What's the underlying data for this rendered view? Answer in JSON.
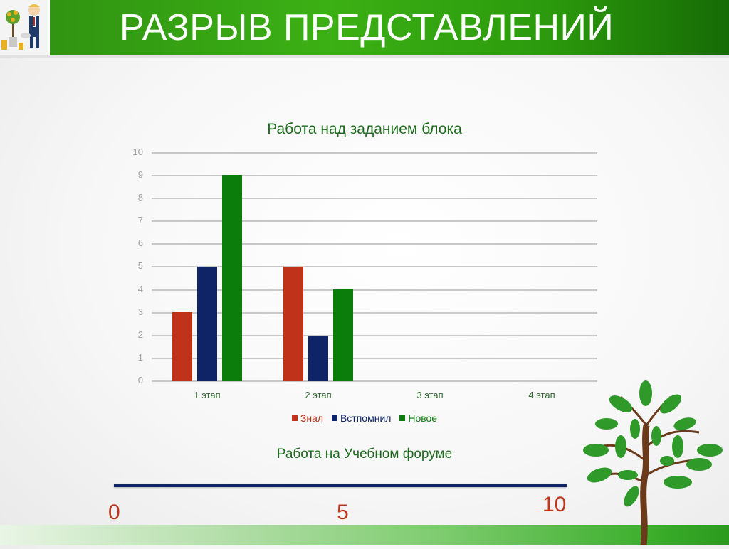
{
  "header": {
    "title": "РАЗРЫВ ПРЕДСТАВЛЕНИЙ",
    "logo_icon": "businessman-money-tree-icon",
    "background_color": "#3bb014"
  },
  "chart_data": {
    "type": "bar",
    "title": "Работа над заданием блока",
    "categories": [
      "1 этап",
      "2 этап",
      "3 этап",
      "4 этап"
    ],
    "series": [
      {
        "name": "Знал",
        "color": "#c0321a",
        "values": [
          3,
          5,
          null,
          null
        ]
      },
      {
        "name": "Встпомнил",
        "color": "#0f2466",
        "values": [
          5,
          2,
          null,
          null
        ]
      },
      {
        "name": "Новое",
        "color": "#0b7d0b",
        "values": [
          9,
          4,
          null,
          null
        ]
      }
    ],
    "xlabel": "",
    "ylabel": "",
    "ylim": [
      0,
      10
    ],
    "yticks": [
      "0",
      "1",
      "2",
      "3",
      "4",
      "5",
      "6",
      "7",
      "8",
      "9",
      "10"
    ],
    "grid": true,
    "legend_position": "bottom"
  },
  "scale": {
    "title": "Работа на Учебном форуме",
    "labels": {
      "start": "0",
      "mid": "5",
      "end": "10"
    },
    "line_color": "#0f2466",
    "label_color": "#c0361b"
  },
  "decor": {
    "tree_icon": "green-tree-icon"
  }
}
